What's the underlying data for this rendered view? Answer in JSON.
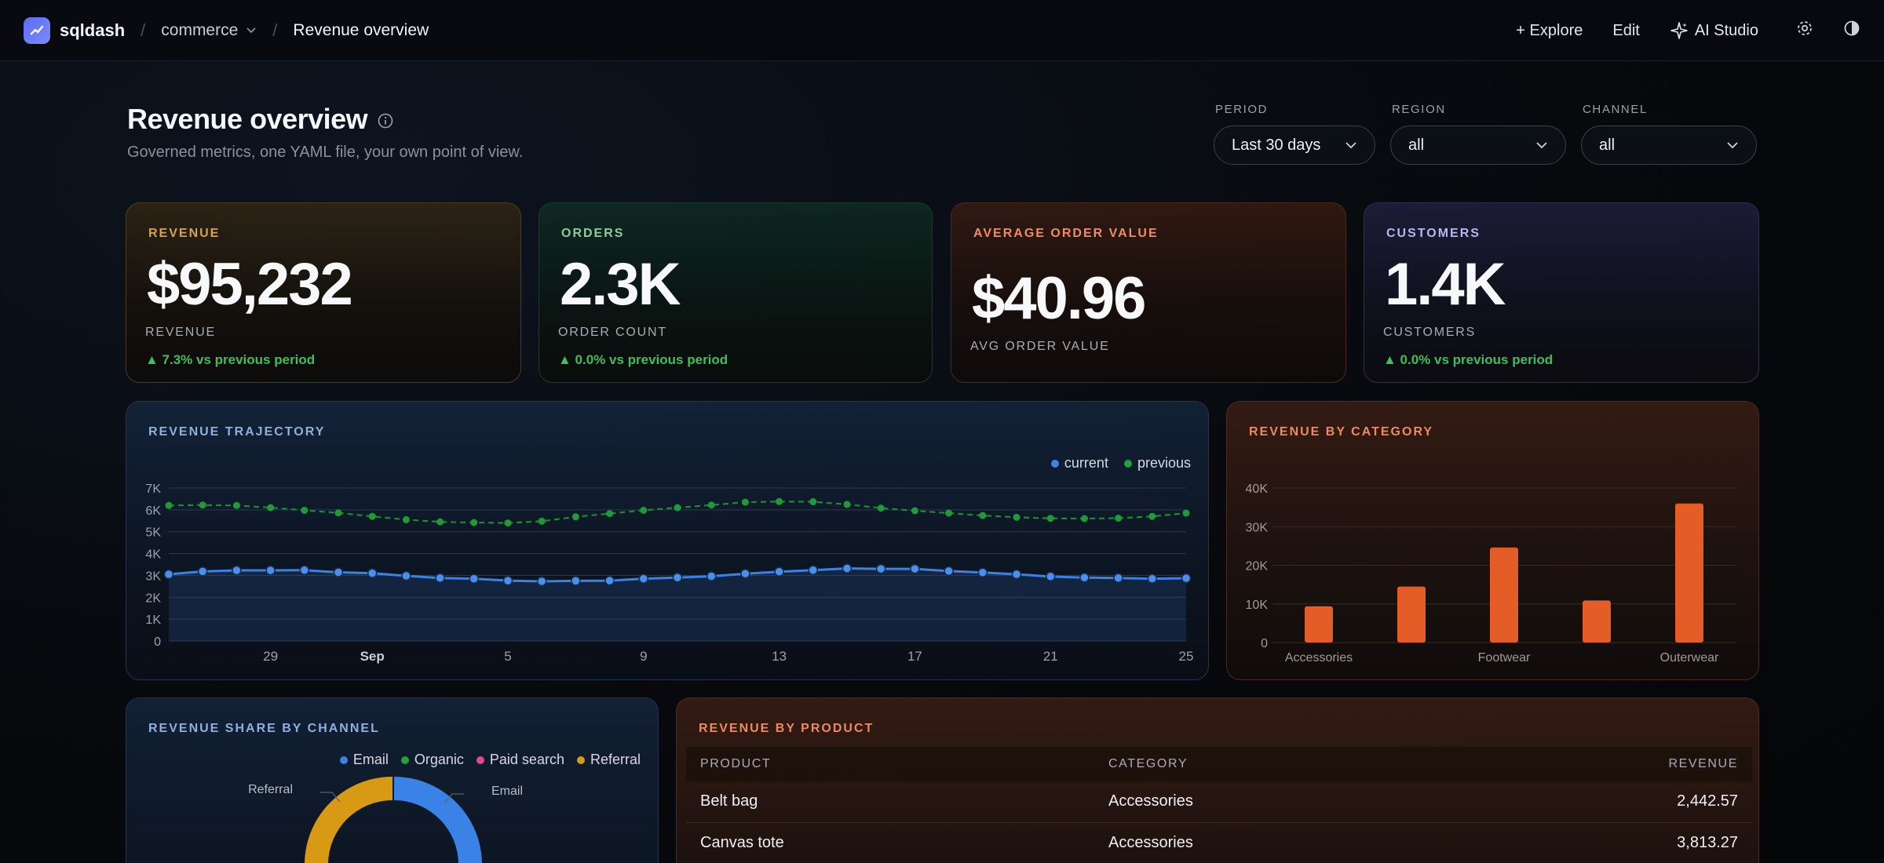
{
  "topbar": {
    "brand": "sqldash",
    "crumbs": [
      "commerce",
      "Revenue overview"
    ],
    "actions": {
      "explore": "+ Explore",
      "edit": "Edit",
      "ai_studio": "AI Studio"
    },
    "icons": [
      "chart-logo-icon",
      "chevron-down-icon",
      "sparkle-icon",
      "gear-icon",
      "contrast-icon"
    ]
  },
  "header": {
    "title": "Revenue overview",
    "subtitle": "Governed metrics, one YAML file, your own point of view."
  },
  "filters": [
    {
      "label": "PERIOD",
      "value": "Last 30 days"
    },
    {
      "label": "REGION",
      "value": "all"
    },
    {
      "label": "CHANNEL",
      "value": "all"
    }
  ],
  "kpis": [
    {
      "label": "REVENUE",
      "value": "$95,232",
      "sub": "REVENUE",
      "delta": "▲ 7.3% vs previous period",
      "accent": "#d79a3c"
    },
    {
      "label": "ORDERS",
      "value": "2.3K",
      "sub": "ORDER COUNT",
      "delta": "▲ 0.0% vs previous period",
      "accent": "#7fc49a"
    },
    {
      "label": "AVERAGE ORDER VALUE",
      "value": "$40.96",
      "sub": "AVG ORDER VALUE",
      "delta": "",
      "accent": "#e8845a"
    },
    {
      "label": "CUSTOMERS",
      "value": "1.4K",
      "sub": "CUSTOMERS",
      "delta": "▲ 0.0% vs previous period",
      "accent": "#a9aee6"
    }
  ],
  "trajectory": {
    "title": "REVENUE TRAJECTORY",
    "legend": [
      "current",
      "previous"
    ],
    "colors": {
      "current": "#3b82e6",
      "previous": "#22a13a"
    }
  },
  "category": {
    "title": "REVENUE BY CATEGORY",
    "color": "#e45c26"
  },
  "channel_share": {
    "title": "REVENUE SHARE BY CHANNEL",
    "legend": [
      "Email",
      "Organic",
      "Paid search",
      "Referral"
    ],
    "colors": [
      "#3b82e6",
      "#22a13a",
      "#e04a8c",
      "#d89a14"
    ],
    "callouts": {
      "left": "Referral",
      "right": "Email"
    }
  },
  "products": {
    "title": "REVENUE BY PRODUCT",
    "columns": [
      "PRODUCT",
      "CATEGORY",
      "REVENUE"
    ],
    "rows": [
      {
        "product": "Belt bag",
        "category": "Accessories",
        "revenue": "2,442.57"
      },
      {
        "product": "Canvas tote",
        "category": "Accessories",
        "revenue": "3,813.27"
      }
    ]
  },
  "chart_data": [
    {
      "type": "line",
      "title": "REVENUE TRAJECTORY",
      "x_tick_labels": [
        "29",
        "Sep",
        "5",
        "9",
        "13",
        "17",
        "21",
        "25"
      ],
      "y_tick_labels": [
        "0",
        "1K",
        "2K",
        "3K",
        "4K",
        "5K",
        "6K",
        "7K"
      ],
      "ylim": [
        0,
        7000
      ],
      "grid": true,
      "legend_position": "top-right",
      "x": [
        "Aug 26",
        "Aug 27",
        "Aug 28",
        "Aug 29",
        "Aug 30",
        "Aug 31",
        "Sep 1",
        "Sep 2",
        "Sep 3",
        "Sep 4",
        "Sep 5",
        "Sep 6",
        "Sep 7",
        "Sep 8",
        "Sep 9",
        "Sep 10",
        "Sep 11",
        "Sep 12",
        "Sep 13",
        "Sep 14",
        "Sep 15",
        "Sep 16",
        "Sep 17",
        "Sep 18",
        "Sep 19",
        "Sep 20",
        "Sep 21",
        "Sep 22",
        "Sep 23",
        "Sep 24",
        "Sep 25"
      ],
      "series": [
        {
          "name": "current",
          "values": [
            3050,
            3180,
            3230,
            3230,
            3240,
            3140,
            3100,
            2980,
            2880,
            2850,
            2760,
            2730,
            2750,
            2760,
            2850,
            2900,
            2960,
            3080,
            3170,
            3240,
            3320,
            3300,
            3300,
            3200,
            3130,
            3050,
            2950,
            2900,
            2880,
            2850,
            2870
          ]
        },
        {
          "name": "previous",
          "values": [
            6200,
            6220,
            6200,
            6100,
            5980,
            5860,
            5700,
            5550,
            5450,
            5420,
            5400,
            5480,
            5680,
            5830,
            5980,
            6100,
            6220,
            6350,
            6380,
            6370,
            6250,
            6080,
            5960,
            5850,
            5740,
            5660,
            5610,
            5600,
            5620,
            5700,
            5850
          ]
        }
      ]
    },
    {
      "type": "bar",
      "title": "REVENUE BY CATEGORY",
      "categories": [
        "Accessories",
        "",
        "Footwear",
        "",
        "Outerwear"
      ],
      "values": [
        9400,
        14500,
        24600,
        10900,
        36000
      ],
      "y_tick_labels": [
        "0",
        "10K",
        "20K",
        "30K",
        "40K"
      ],
      "ylim": [
        0,
        40000
      ],
      "grid": true
    },
    {
      "type": "pie",
      "title": "REVENUE SHARE BY CHANNEL",
      "categories": [
        "Email",
        "Organic",
        "Paid search",
        "Referral"
      ],
      "legend_position": "top-right"
    }
  ]
}
